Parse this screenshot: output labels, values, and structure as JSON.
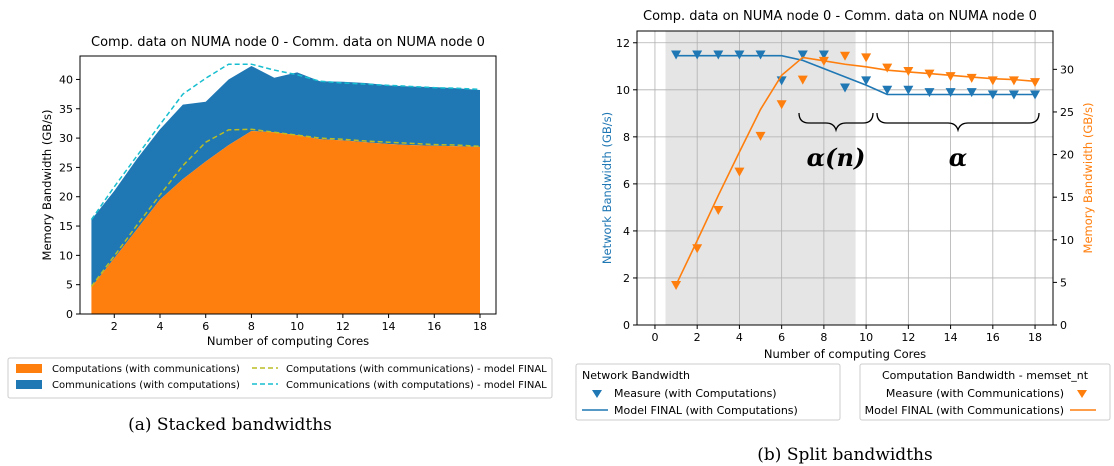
{
  "chart_data": [
    {
      "type": "area",
      "title": "Comp. data on NUMA node 0 - Comm. data on NUMA node 0",
      "xlabel": "Number of computing Cores",
      "ylabel": "Memory Bandwidth (GB/s)",
      "xlim": [
        0.5,
        18.7
      ],
      "ylim": [
        0,
        44
      ],
      "xticks": [
        2,
        4,
        6,
        8,
        10,
        12,
        14,
        16,
        18
      ],
      "yticks": [
        0,
        5,
        10,
        15,
        20,
        25,
        30,
        35,
        40
      ],
      "x": [
        1,
        2,
        3,
        4,
        5,
        6,
        7,
        8,
        9,
        10,
        11,
        12,
        13,
        14,
        15,
        16,
        17,
        18
      ],
      "series": [
        {
          "name": "Computations (with communications)",
          "color": "#ff7f0e",
          "values": [
            4.6,
            9.5,
            14.5,
            19.5,
            23.0,
            26.0,
            28.8,
            31.2,
            31.0,
            30.5,
            29.8,
            29.6,
            29.3,
            29.0,
            28.8,
            28.7,
            28.6,
            28.5
          ]
        },
        {
          "name": "Communications (with computations)",
          "color": "#1f77b4",
          "values": [
            11.5,
            11.5,
            12.0,
            12.0,
            12.7,
            10.2,
            11.2,
            11.1,
            9.3,
            10.7,
            9.9,
            10.0,
            10.1,
            10.0,
            10.0,
            10.0,
            9.9,
            9.7
          ]
        },
        {
          "name": "Computations (with communications) - model FINAL",
          "color": "#bcbd22",
          "style": "dashed",
          "values": [
            4.7,
            9.9,
            15.2,
            20.3,
            25.3,
            29.3,
            31.4,
            31.5,
            31.0,
            30.5,
            30.0,
            29.8,
            29.5,
            29.3,
            29.1,
            28.9,
            28.8,
            28.6
          ]
        },
        {
          "name": "Communications (with computations) - model FINAL",
          "color": "#17becf",
          "style": "dashed",
          "values": [
            16.1,
            21.7,
            27.0,
            32.3,
            37.5,
            40.2,
            42.6,
            42.6,
            41.6,
            40.8,
            39.7,
            39.4,
            39.2,
            39.0,
            38.8,
            38.6,
            38.5,
            38.3
          ]
        }
      ],
      "legend": "below",
      "caption": "(a) Stacked bandwidths"
    },
    {
      "type": "line",
      "title": "Comp. data on NUMA node 0 - Comm. data on NUMA node 0",
      "xlabel": "Number of computing Cores",
      "ylabel": "Network Bandwidth (GB/s)",
      "ylabel_right": "Memory Bandwidth (GB/s)",
      "xlim": [
        -0.85,
        18.85
      ],
      "ylim": [
        0,
        12.5
      ],
      "ylim_right": [
        0,
        34.5
      ],
      "xticks": [
        0,
        2,
        4,
        6,
        8,
        10,
        12,
        14,
        16,
        18
      ],
      "yticks": [
        0,
        2,
        4,
        6,
        8,
        10,
        12
      ],
      "yticks_right": [
        0,
        5,
        10,
        15,
        20,
        25,
        30
      ],
      "shaded_region": [
        0.5,
        9.5
      ],
      "x": [
        1,
        2,
        3,
        4,
        5,
        6,
        7,
        8,
        9,
        10,
        11,
        12,
        13,
        14,
        15,
        16,
        17,
        18
      ],
      "series": [
        {
          "name": "Measure (with Computations)",
          "axis": "left",
          "color": "#1f77b4",
          "marker": "triangle-down",
          "values": [
            11.5,
            11.5,
            11.5,
            11.5,
            11.5,
            10.4,
            11.5,
            11.5,
            10.1,
            10.4,
            10.0,
            10.0,
            9.9,
            9.9,
            9.9,
            9.8,
            9.8,
            9.8
          ]
        },
        {
          "name": "Model FINAL (with Computations)",
          "axis": "left",
          "color": "#1f77b4",
          "values": [
            11.45,
            11.45,
            11.45,
            11.45,
            11.45,
            11.45,
            11.25,
            10.9,
            10.55,
            10.2,
            9.8,
            9.8,
            9.8,
            9.8,
            9.8,
            9.8,
            9.8,
            9.8
          ]
        },
        {
          "name": "Measure (with Communications)",
          "axis": "right",
          "color": "#ff7f0e",
          "marker": "triangle-down",
          "values": [
            4.7,
            9.0,
            13.5,
            18.0,
            22.2,
            25.9,
            28.8,
            31.0,
            31.6,
            31.4,
            30.2,
            29.8,
            29.5,
            29.2,
            29.0,
            28.7,
            28.7,
            28.5
          ]
        },
        {
          "name": "Model FINAL (with Communications)",
          "axis": "right",
          "color": "#ff7f0e",
          "values": [
            4.7,
            9.9,
            15.2,
            20.3,
            25.3,
            29.3,
            31.4,
            31.0,
            30.6,
            30.3,
            29.9,
            29.7,
            29.5,
            29.3,
            29.1,
            28.9,
            28.8,
            28.6
          ]
        }
      ],
      "annotations": [
        {
          "text": "α(n)",
          "x_range": [
            7,
            10
          ]
        },
        {
          "text": "α",
          "x_range": [
            11,
            18
          ]
        }
      ],
      "legend_left_title": "Network Bandwidth",
      "legend_right_title": "Computation Bandwidth - memset_nt",
      "caption": "(b) Split bandwidths"
    }
  ]
}
